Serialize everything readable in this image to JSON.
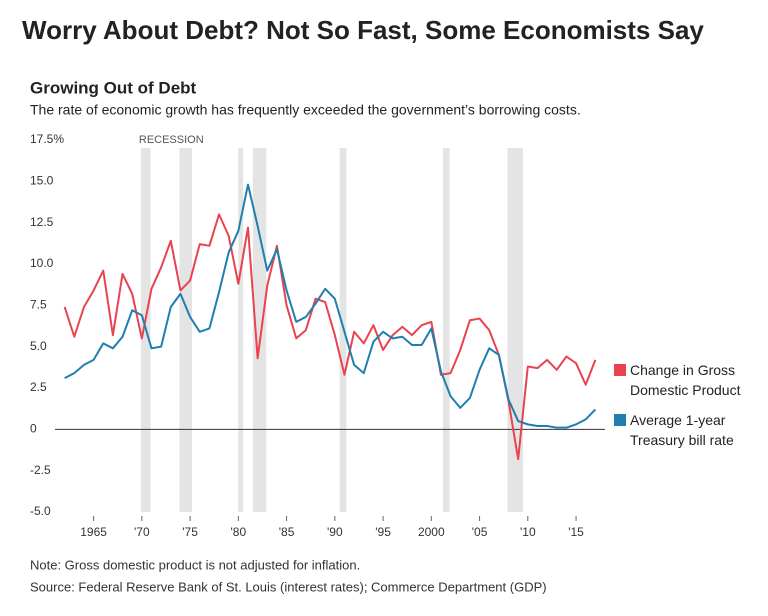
{
  "header": {
    "title": "Worry About Debt? Not So Fast, Some Economists Say"
  },
  "chart_data": {
    "type": "line",
    "title": "Growing Out of Debt",
    "subtitle": "The rate of economic growth has frequently exceeded the government’s borrowing costs.",
    "x": [
      1962,
      1963,
      1964,
      1965,
      1966,
      1967,
      1968,
      1969,
      1970,
      1971,
      1972,
      1973,
      1974,
      1975,
      1976,
      1977,
      1978,
      1979,
      1980,
      1981,
      1982,
      1983,
      1984,
      1985,
      1986,
      1987,
      1988,
      1989,
      1990,
      1991,
      1992,
      1993,
      1994,
      1995,
      1996,
      1997,
      1998,
      1999,
      2000,
      2001,
      2002,
      2003,
      2004,
      2005,
      2006,
      2007,
      2008,
      2009,
      2010,
      2011,
      2012,
      2013,
      2014,
      2015,
      2016,
      2017
    ],
    "series": [
      {
        "name": "Change in Gross Domestic Product",
        "color": "#e8434f",
        "values": [
          7.4,
          5.6,
          7.4,
          8.4,
          9.6,
          5.7,
          9.4,
          8.2,
          5.5,
          8.5,
          9.8,
          11.4,
          8.4,
          9.0,
          11.2,
          11.1,
          13.0,
          11.7,
          8.8,
          12.2,
          4.3,
          8.7,
          11.1,
          7.5,
          5.5,
          6.0,
          7.9,
          7.7,
          5.7,
          3.3,
          5.9,
          5.2,
          6.3,
          4.8,
          5.7,
          6.2,
          5.7,
          6.3,
          6.5,
          3.3,
          3.4,
          4.8,
          6.6,
          6.7,
          6.0,
          4.5,
          1.7,
          -1.8,
          3.8,
          3.7,
          4.2,
          3.6,
          4.4,
          4.0,
          2.7,
          4.2
        ]
      },
      {
        "name": "Average 1-year Treasury bill rate",
        "color": "#1f7fae",
        "values": [
          3.1,
          3.4,
          3.9,
          4.2,
          5.2,
          4.9,
          5.6,
          7.2,
          6.9,
          4.9,
          5.0,
          7.4,
          8.2,
          6.8,
          5.9,
          6.1,
          8.3,
          10.7,
          12.0,
          14.8,
          12.3,
          9.6,
          10.9,
          8.4,
          6.5,
          6.8,
          7.6,
          8.5,
          7.9,
          5.9,
          3.9,
          3.4,
          5.3,
          5.9,
          5.5,
          5.6,
          5.1,
          5.1,
          6.1,
          3.5,
          2.0,
          1.3,
          1.9,
          3.6,
          4.9,
          4.5,
          1.8,
          0.5,
          0.3,
          0.2,
          0.2,
          0.1,
          0.1,
          0.3,
          0.6,
          1.2
        ]
      }
    ],
    "recession_label": "RECESSION",
    "recessions": [
      [
        1969.9,
        1970.9
      ],
      [
        1973.9,
        1975.2
      ],
      [
        1980.0,
        1980.5
      ],
      [
        1981.5,
        1982.9
      ],
      [
        1990.5,
        1991.2
      ],
      [
        2001.2,
        2001.9
      ],
      [
        2007.9,
        2009.5
      ]
    ],
    "recession_color": "#e4e4e4",
    "xlim": [
      1961,
      2018
    ],
    "xticks": [
      1965,
      {
        "value": 1970,
        "label": "'70"
      },
      {
        "value": 1975,
        "label": "'75"
      },
      {
        "value": 1980,
        "label": "'80"
      },
      {
        "value": 1985,
        "label": "'85"
      },
      {
        "value": 1990,
        "label": "'90"
      },
      {
        "value": 1995,
        "label": "'95"
      },
      2000,
      {
        "value": 2005,
        "label": "'05"
      },
      {
        "value": 2010,
        "label": "'10"
      },
      {
        "value": 2015,
        "label": "'15"
      }
    ],
    "ylim": [
      -5,
      17.5
    ],
    "yticks": [
      {
        "value": 17.5,
        "label": "17.5%"
      },
      {
        "value": 15,
        "label": "15.0"
      },
      {
        "value": 12.5,
        "label": "12.5"
      },
      {
        "value": 10,
        "label": "10.0"
      },
      {
        "value": 7.5,
        "label": "7.5"
      },
      {
        "value": 5,
        "label": "5.0"
      },
      {
        "value": 2.5,
        "label": "2.5"
      },
      0,
      {
        "value": -2.5,
        "label": "-2.5"
      },
      {
        "value": -5,
        "label": "-5.0"
      }
    ],
    "note": "Note: Gross domestic product is not adjusted for inflation.",
    "source": "Source: Federal Reserve Bank of St. Louis (interest rates); Commerce Department (GDP)"
  }
}
